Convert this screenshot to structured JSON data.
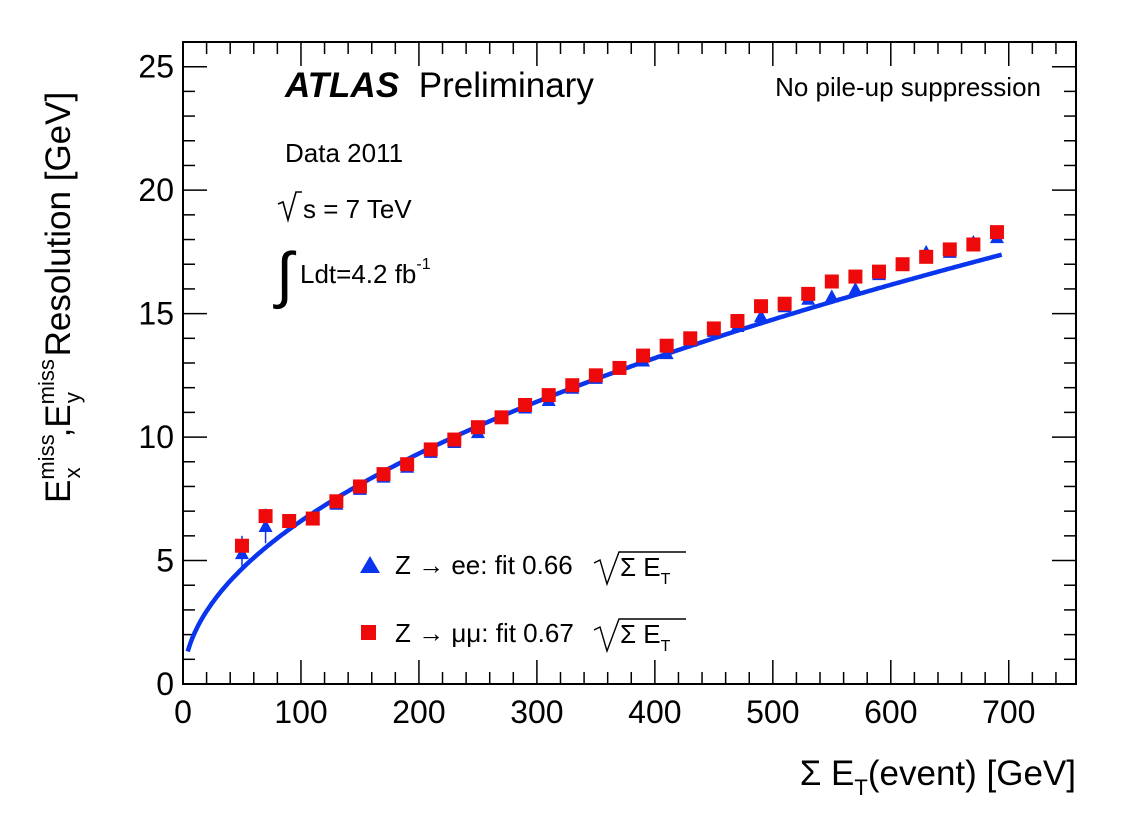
{
  "chart_data": {
    "type": "scatter",
    "xlim": [
      0,
      757
    ],
    "ylim": [
      0,
      26
    ],
    "x_ticks": [
      0,
      100,
      200,
      300,
      400,
      500,
      600,
      700
    ],
    "y_ticks": [
      0,
      5,
      10,
      15,
      20,
      25
    ],
    "xlabel": {
      "main": "Σ E",
      "sub": "T",
      "rest": "(event)  [GeV]"
    },
    "ylabel": {
      "e1": "E",
      "e1_sup": "miss",
      "e1_sub": "x",
      "sep": ",",
      "e2": "E",
      "e2_sup": "miss",
      "e2_sub": "y",
      "rest": " Resolution [GeV]"
    },
    "annotations": {
      "atlas": "ATLAS",
      "preliminary": "Preliminary",
      "pileup": "No pile-up suppression",
      "data": "Data 2011",
      "sqrt_s": "s = 7 TeV",
      "lumi_main": "Ldt=4.2 fb",
      "lumi_sup": "-1"
    },
    "series": [
      {
        "name": "Z → ee",
        "legend_prefix": "Z → ee: fit 0.66",
        "legend_sqrt": "Σ E",
        "legend_sub": "T",
        "marker": "triangle",
        "color": "#0a35ee",
        "x": [
          50,
          70,
          90,
          110,
          130,
          150,
          170,
          190,
          210,
          230,
          250,
          270,
          290,
          310,
          330,
          350,
          370,
          390,
          410,
          430,
          450,
          470,
          490,
          510,
          530,
          550,
          570,
          590,
          610,
          630,
          650,
          670,
          690
        ],
        "y": [
          5.3,
          6.4,
          6.6,
          6.7,
          7.3,
          7.9,
          8.4,
          8.8,
          9.4,
          9.8,
          10.2,
          10.8,
          11.2,
          11.5,
          12.0,
          12.4,
          12.8,
          13.1,
          13.4,
          13.9,
          14.3,
          14.5,
          14.9,
          15.3,
          15.6,
          15.7,
          16.0,
          16.6,
          17.0,
          17.5,
          17.5,
          17.9,
          18.1
        ],
        "yerr": [
          0.7,
          0.7,
          0.15,
          0.15,
          0.15,
          0.1,
          0.1,
          0.1,
          0.1,
          0.1,
          0.1,
          0.1,
          0.1,
          0.1,
          0.1,
          0.1,
          0.1,
          0.1,
          0.1,
          0.1,
          0.1,
          0.1,
          0.1,
          0.1,
          0.1,
          0.1,
          0.1,
          0.1,
          0.1,
          0.1,
          0.1,
          0.1,
          0.1
        ]
      },
      {
        "name": "Z → μμ",
        "legend_prefix": "Z → μμ: fit 0.67",
        "legend_sqrt": "Σ E",
        "legend_sub": "T",
        "marker": "square",
        "color": "#ee0a0a",
        "x": [
          50,
          70,
          90,
          110,
          130,
          150,
          170,
          190,
          210,
          230,
          250,
          270,
          290,
          310,
          330,
          350,
          370,
          390,
          410,
          430,
          450,
          470,
          490,
          510,
          530,
          550,
          570,
          590,
          610,
          630,
          650,
          670,
          690
        ],
        "y": [
          5.6,
          6.8,
          6.6,
          6.7,
          7.4,
          8.0,
          8.5,
          8.9,
          9.5,
          9.9,
          10.4,
          10.8,
          11.3,
          11.7,
          12.1,
          12.5,
          12.8,
          13.3,
          13.7,
          14.0,
          14.4,
          14.7,
          15.3,
          15.4,
          15.8,
          16.3,
          16.5,
          16.7,
          17.0,
          17.3,
          17.6,
          17.8,
          18.3
        ]
      }
    ],
    "fit_curve": {
      "color": "#0a35ee",
      "coefficient": 0.66,
      "x_range": [
        4,
        695
      ]
    }
  }
}
